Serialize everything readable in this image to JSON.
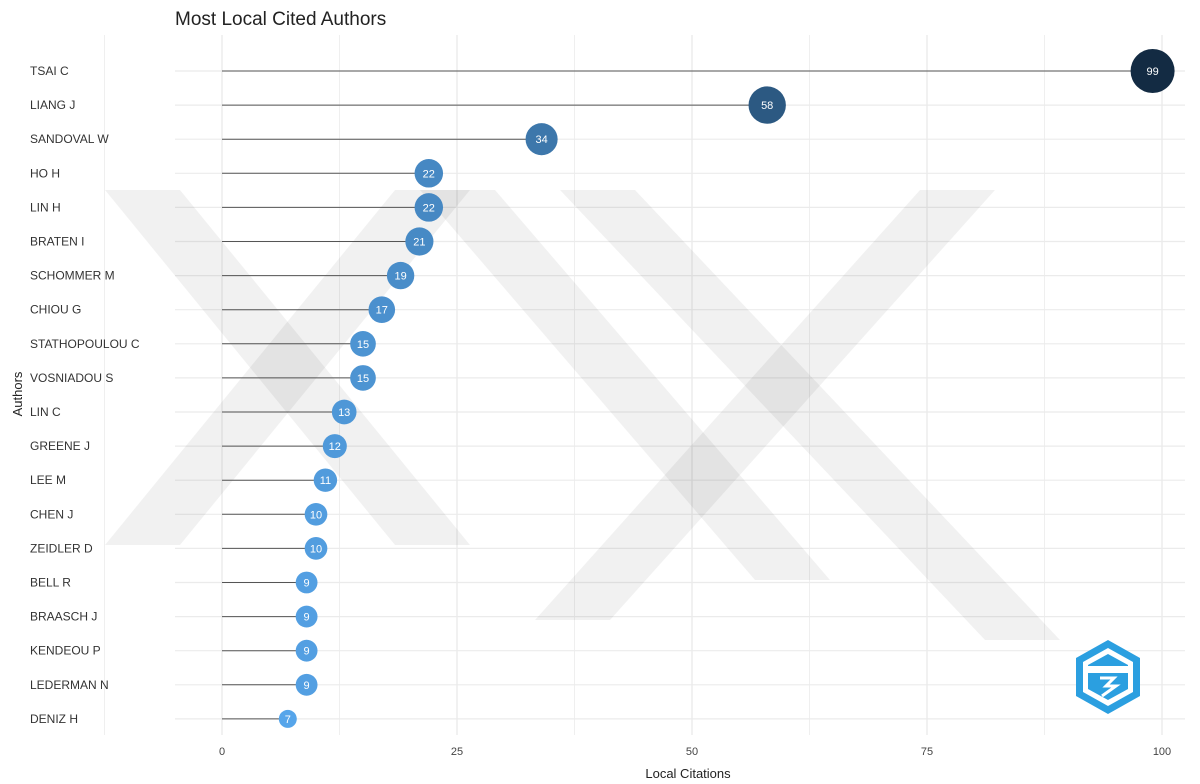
{
  "chart_data": {
    "type": "lollipop",
    "title": "Most Local Cited Authors",
    "xlabel": "Local Citations",
    "ylabel": "Authors",
    "xlim": [
      0,
      100
    ],
    "x_ticks": [
      0,
      25,
      50,
      75,
      100
    ],
    "grid": true,
    "categories": [
      "TSAI C",
      "LIANG J",
      "SANDOVAL W",
      "HO H",
      "LIN H",
      "BRATEN I",
      "SCHOMMER M",
      "CHIOU G",
      "STATHOPOULOU C",
      "VOSNIADOU S",
      "LIN C",
      "GREENE J",
      "LEE M",
      "CHEN J",
      "ZEIDLER D",
      "BELL R",
      "BRAASCH J",
      "KENDEOU P",
      "LEDERMAN N",
      "DENIZ H"
    ],
    "values": [
      99,
      58,
      34,
      22,
      22,
      21,
      19,
      17,
      15,
      15,
      13,
      12,
      11,
      10,
      10,
      9,
      9,
      9,
      9,
      7
    ],
    "colors": {
      "low": "#56a5ea",
      "high": "#132b43",
      "stem": "#555555",
      "grid": "#ebebeb"
    }
  }
}
